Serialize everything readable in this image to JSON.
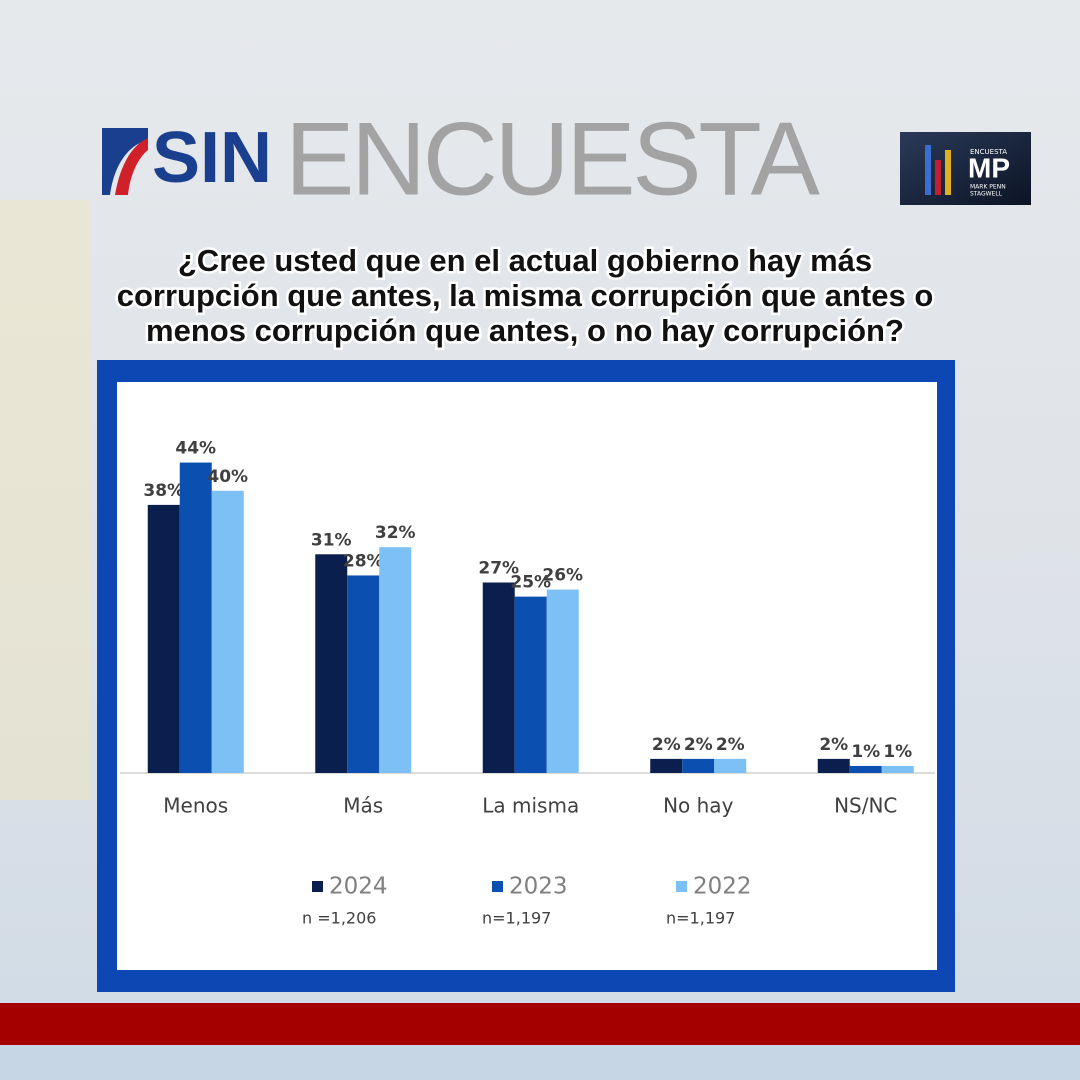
{
  "header": {
    "brand": "SIN",
    "word": "ENCUESTA",
    "logo": {
      "top": "ENCUESTA",
      "mark": "MP",
      "sub1": "MARK PENN",
      "sub2": "STAGWELL"
    }
  },
  "chart_data": {
    "type": "bar",
    "title": [
      "¿Cree usted que en el actual gobierno hay más",
      "corrupción que antes, la misma corrupción que antes o",
      "menos corrupción que antes, o no hay corrupción?"
    ],
    "categories": [
      "Menos",
      "Más",
      "La misma",
      "No hay",
      "NS/NC"
    ],
    "ylim": [
      0,
      54
    ],
    "series": [
      {
        "name": "2024",
        "sample": "n =1,206",
        "color": "#0a1f4d",
        "values": [
          38,
          31,
          27,
          2,
          2
        ],
        "value_labels": [
          "38%",
          "31%",
          "27%",
          "2%",
          "2%"
        ]
      },
      {
        "name": "2023",
        "sample": "n=1,197",
        "color": "#0b4fb0",
        "values": [
          44,
          28,
          25,
          2,
          1
        ],
        "value_labels": [
          "44%",
          "28%",
          "25%",
          "2%",
          "1%"
        ]
      },
      {
        "name": "2022",
        "sample": "n=1,197",
        "color": "#7cc0f5",
        "values": [
          40,
          32,
          26,
          2,
          1
        ],
        "value_labels": [
          "40%",
          "32%",
          "26%",
          "2%",
          "1%"
        ]
      }
    ]
  }
}
